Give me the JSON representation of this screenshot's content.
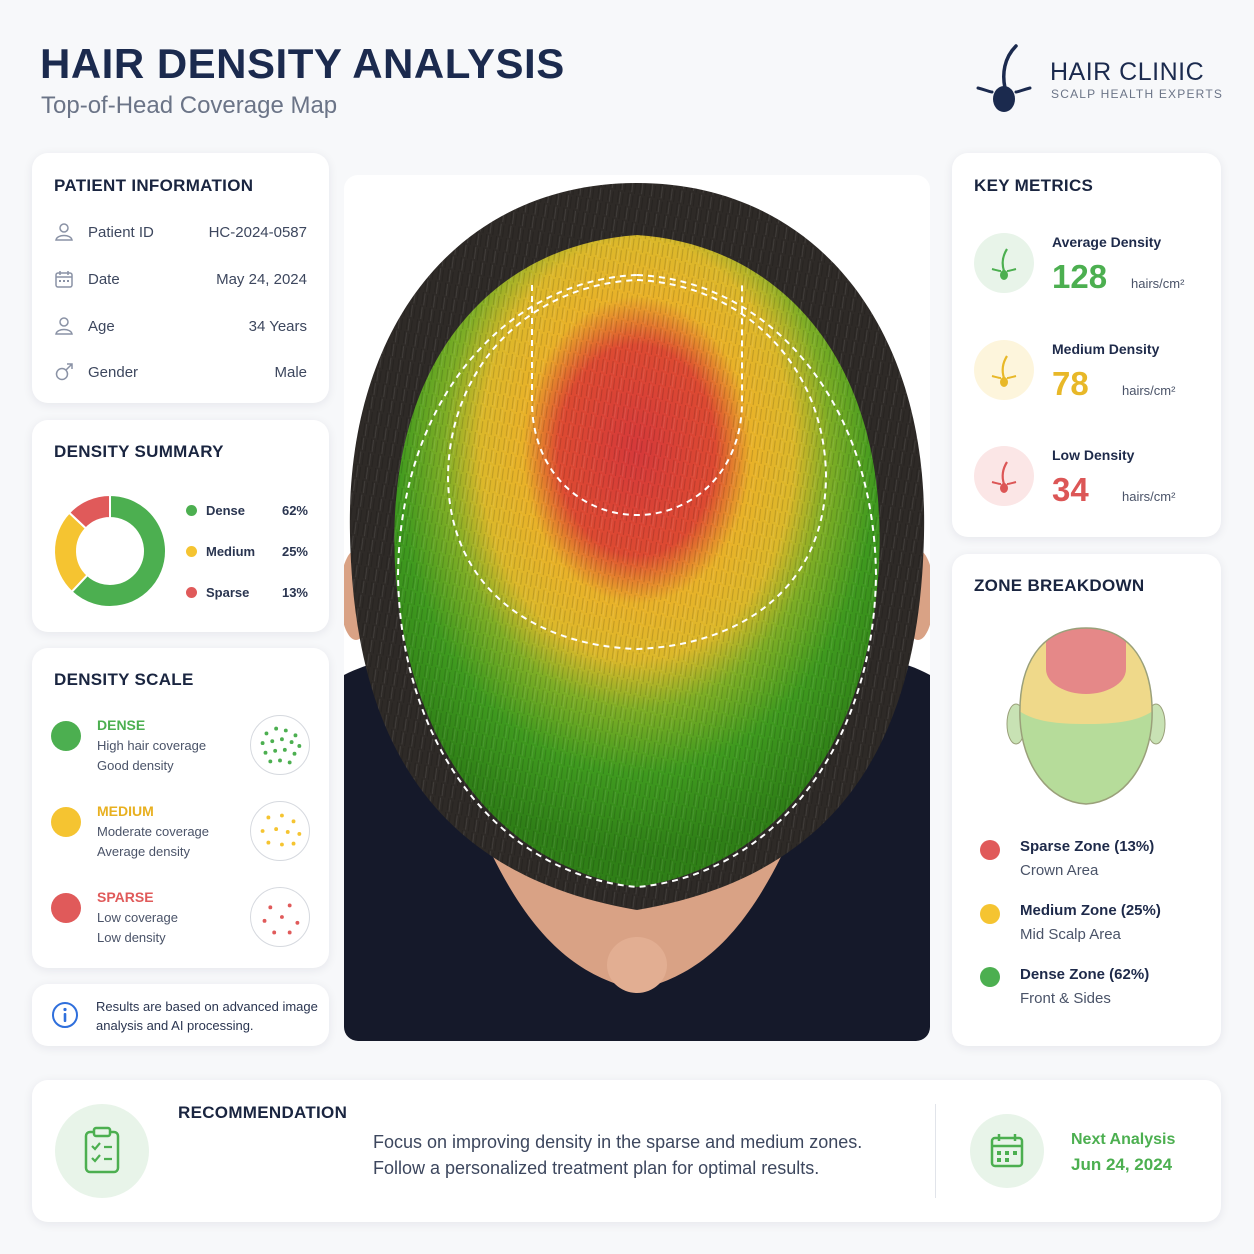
{
  "header": {
    "title": "HAIR DENSITY ANALYSIS",
    "subtitle": "Top-of-Head Coverage Map",
    "brand_name": "HAIR CLINIC",
    "brand_tagline": "SCALP HEALTH EXPERTS",
    "brand_icon": "hair-follicle-logo"
  },
  "patient": {
    "title": "PATIENT INFORMATION",
    "rows": [
      {
        "icon": "user-icon",
        "label": "Patient ID",
        "value": "HC-2024-0587"
      },
      {
        "icon": "calendar-icon",
        "label": "Date",
        "value": "May 24, 2024"
      },
      {
        "icon": "user-icon",
        "label": "Age",
        "value": "34 Years"
      },
      {
        "icon": "male-icon",
        "label": "Gender",
        "value": "Male"
      }
    ]
  },
  "summary": {
    "title": "DENSITY SUMMARY",
    "items": [
      {
        "label": "Dense",
        "percent": "62%",
        "value": 62,
        "color": "#4caf50"
      },
      {
        "label": "Medium",
        "percent": "25%",
        "value": 25,
        "color": "#f5c431"
      },
      {
        "label": "Sparse",
        "percent": "13%",
        "value": 13,
        "color": "#e05a5a"
      }
    ]
  },
  "scale": {
    "title": "DENSITY SCALE",
    "items": [
      {
        "name": "DENSE",
        "line1": "High hair coverage",
        "line2": "Good density",
        "color": "#4caf50"
      },
      {
        "name": "MEDIUM",
        "line1": "Moderate coverage",
        "line2": "Average density",
        "color": "#f5c431"
      },
      {
        "name": "SPARSE",
        "line1": "Low coverage",
        "line2": "Low density",
        "color": "#e05a5a"
      }
    ]
  },
  "note": {
    "icon": "info-icon",
    "text_line1": "Results are based on advanced image",
    "text_line2": "analysis and AI processing."
  },
  "metrics": {
    "title": "KEY METRICS",
    "items": [
      {
        "label": "Average Density",
        "value": "128",
        "unit": "hairs/cm²",
        "color": "#4caf50",
        "bg": "#e8f4e9"
      },
      {
        "label": "Medium Density",
        "value": "78",
        "unit": "hairs/cm²",
        "color": "#e8b828",
        "bg": "#fdf5dc"
      },
      {
        "label": "Low Density",
        "value": "34",
        "unit": "hairs/cm²",
        "color": "#dc5656",
        "bg": "#fbe6e6"
      }
    ]
  },
  "zones": {
    "title": "ZONE BREAKDOWN",
    "items": [
      {
        "name": "Sparse Zone (13%)",
        "area": "Crown Area",
        "color": "#e05a5a"
      },
      {
        "name": "Medium Zone (25%)",
        "area": "Mid Scalp Area",
        "color": "#f5c431"
      },
      {
        "name": "Dense Zone (62%)",
        "area": "Front & Sides",
        "color": "#4caf50"
      }
    ]
  },
  "recommendation": {
    "title": "RECOMMENDATION",
    "icon": "clipboard-icon",
    "line1": "Focus on improving density in the sparse and medium zones.",
    "line2": "Follow a personalized treatment plan for optimal results.",
    "next_label": "Next Analysis",
    "next_date": "Jun 24, 2024",
    "next_icon": "calendar-icon"
  }
}
